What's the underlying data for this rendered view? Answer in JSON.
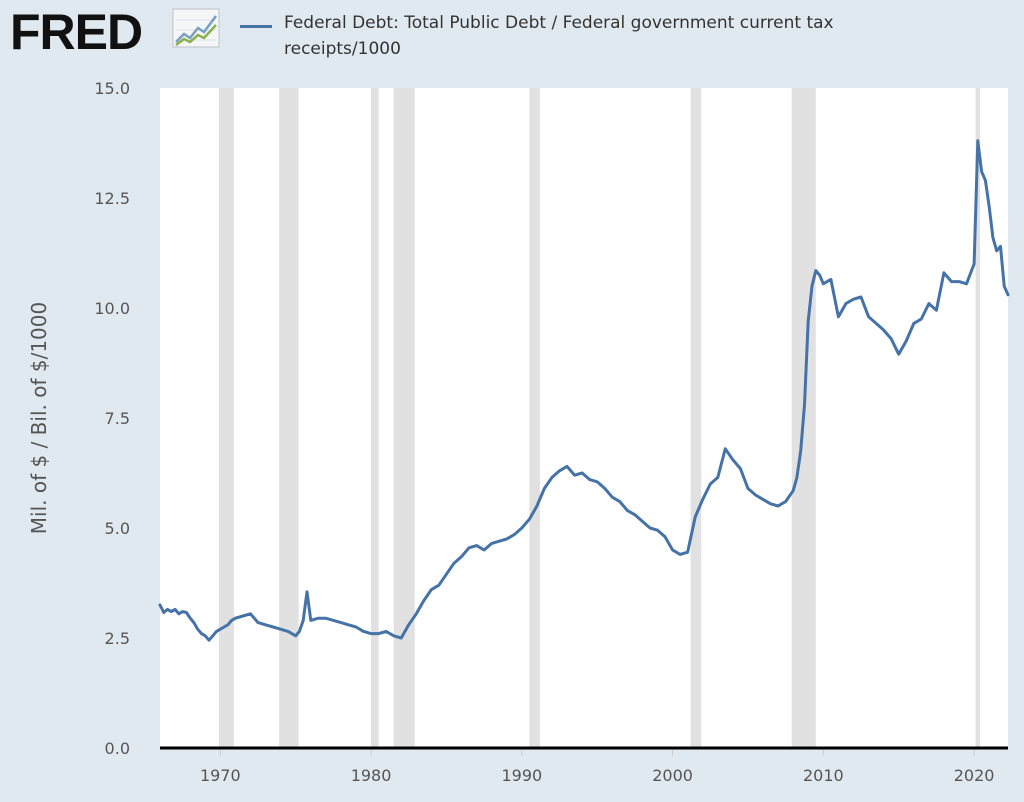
{
  "header": {
    "logo_text": "FRED",
    "logo_icon": "line-chart-icon"
  },
  "colors": {
    "series": "#4572a7",
    "recession": "#e1e1e1",
    "plot_bg": "#ffffff",
    "page_bg": "#e1e9f0"
  },
  "chart_data": {
    "type": "line",
    "title": "",
    "xlabel": "",
    "ylabel": "Mil. of $ / Bil. of $/1000",
    "xlim": [
      1966.0,
      2022.25
    ],
    "ylim": [
      0,
      15
    ],
    "yticks": [
      "0.0",
      "2.5",
      "5.0",
      "7.5",
      "10.0",
      "12.5",
      "15.0"
    ],
    "xticks": [
      "1970",
      "1980",
      "1990",
      "2000",
      "2010",
      "2020"
    ],
    "grid": false,
    "legend": "top-left",
    "recessions": [
      [
        1969.9,
        1970.9
      ],
      [
        1973.9,
        1975.2
      ],
      [
        1980.0,
        1980.5
      ],
      [
        1981.5,
        1982.9
      ],
      [
        1990.5,
        1991.2
      ],
      [
        2001.2,
        2001.9
      ],
      [
        2007.9,
        2009.5
      ],
      [
        2020.1,
        2020.4
      ]
    ],
    "series": [
      {
        "name": "Federal Debt: Total Public Debt / Federal government current tax receipts/1000",
        "x": [
          1966.0,
          1966.25,
          1966.5,
          1966.75,
          1967.0,
          1967.25,
          1967.5,
          1967.75,
          1968.0,
          1968.25,
          1968.5,
          1968.75,
          1969.0,
          1969.25,
          1969.5,
          1969.75,
          1970.0,
          1970.25,
          1970.5,
          1970.75,
          1971.0,
          1971.5,
          1972.0,
          1972.5,
          1973.0,
          1973.5,
          1974.0,
          1974.5,
          1975.0,
          1975.25,
          1975.5,
          1975.75,
          1976.0,
          1976.5,
          1977.0,
          1977.5,
          1978.0,
          1978.5,
          1979.0,
          1979.5,
          1980.0,
          1980.5,
          1981.0,
          1981.5,
          1982.0,
          1982.5,
          1983.0,
          1983.5,
          1984.0,
          1984.5,
          1985.0,
          1985.5,
          1986.0,
          1986.5,
          1987.0,
          1987.5,
          1988.0,
          1988.5,
          1989.0,
          1989.5,
          1990.0,
          1990.5,
          1991.0,
          1991.5,
          1992.0,
          1992.5,
          1993.0,
          1993.5,
          1994.0,
          1994.5,
          1995.0,
          1995.5,
          1996.0,
          1996.5,
          1997.0,
          1997.5,
          1998.0,
          1998.5,
          1999.0,
          1999.5,
          2000.0,
          2000.5,
          2001.0,
          2001.5,
          2002.0,
          2002.5,
          2003.0,
          2003.5,
          2004.0,
          2004.5,
          2005.0,
          2005.5,
          2006.0,
          2006.5,
          2007.0,
          2007.5,
          2008.0,
          2008.25,
          2008.5,
          2008.75,
          2009.0,
          2009.25,
          2009.5,
          2009.75,
          2010.0,
          2010.5,
          2011.0,
          2011.5,
          2012.0,
          2012.5,
          2013.0,
          2013.5,
          2014.0,
          2014.5,
          2015.0,
          2015.5,
          2016.0,
          2016.5,
          2017.0,
          2017.5,
          2018.0,
          2018.5,
          2019.0,
          2019.5,
          2020.0,
          2020.25,
          2020.5,
          2020.75,
          2021.0,
          2021.25,
          2021.5,
          2021.75,
          2022.0,
          2022.25
        ],
        "y": [
          3.25,
          3.08,
          3.15,
          3.1,
          3.15,
          3.05,
          3.1,
          3.08,
          2.95,
          2.85,
          2.7,
          2.6,
          2.55,
          2.45,
          2.55,
          2.65,
          2.7,
          2.75,
          2.8,
          2.9,
          2.95,
          3.0,
          3.05,
          2.85,
          2.8,
          2.75,
          2.7,
          2.65,
          2.55,
          2.65,
          2.9,
          3.55,
          2.9,
          2.95,
          2.95,
          2.9,
          2.85,
          2.8,
          2.75,
          2.65,
          2.6,
          2.6,
          2.65,
          2.55,
          2.5,
          2.8,
          3.05,
          3.35,
          3.6,
          3.7,
          3.95,
          4.2,
          4.35,
          4.55,
          4.6,
          4.5,
          4.65,
          4.7,
          4.75,
          4.85,
          5.0,
          5.2,
          5.5,
          5.9,
          6.15,
          6.3,
          6.4,
          6.2,
          6.25,
          6.1,
          6.05,
          5.9,
          5.7,
          5.6,
          5.4,
          5.3,
          5.15,
          5.0,
          4.95,
          4.8,
          4.5,
          4.4,
          4.45,
          5.25,
          5.65,
          6.0,
          6.15,
          6.8,
          6.55,
          6.35,
          5.9,
          5.75,
          5.65,
          5.55,
          5.5,
          5.6,
          5.85,
          6.15,
          6.75,
          7.8,
          9.7,
          10.5,
          10.85,
          10.75,
          10.55,
          10.65,
          9.8,
          10.1,
          10.2,
          10.25,
          9.8,
          9.65,
          9.5,
          9.3,
          8.95,
          9.25,
          9.65,
          9.75,
          10.1,
          9.95,
          10.8,
          10.6,
          10.6,
          10.55,
          11.0,
          13.8,
          13.1,
          12.9,
          12.3,
          11.6,
          11.3,
          11.4,
          10.5,
          10.3
        ]
      }
    ]
  }
}
